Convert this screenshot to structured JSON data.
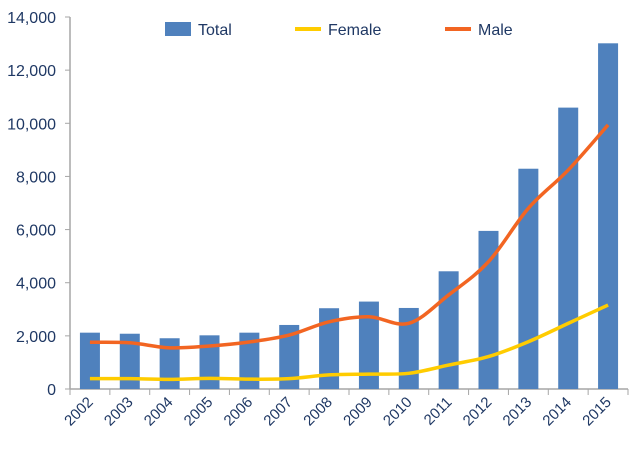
{
  "chart_data": {
    "type": "bar",
    "title": "",
    "xlabel": "",
    "ylabel": "",
    "ylim": [
      0,
      14000
    ],
    "yticks": [
      0,
      2000,
      4000,
      6000,
      8000,
      10000,
      12000,
      14000
    ],
    "ytick_labels": [
      "0",
      "2,000",
      "4,000",
      "6,000",
      "8,000",
      "10,000",
      "12,000",
      "14,000"
    ],
    "categories": [
      "2002",
      "2003",
      "2004",
      "2005",
      "2006",
      "2007",
      "2008",
      "2009",
      "2010",
      "2011",
      "2012",
      "2013",
      "2014",
      "2015"
    ],
    "legend_position": "top",
    "grid": false,
    "series": [
      {
        "name": "Total",
        "kind": "bar",
        "color": "#4f81bd",
        "values": [
          2120,
          2080,
          1910,
          2020,
          2120,
          2410,
          3040,
          3290,
          3050,
          4430,
          5950,
          8290,
          10590,
          13010
        ]
      },
      {
        "name": "Female",
        "kind": "line",
        "color": "#ffcc00",
        "values": [
          390,
          390,
          360,
          400,
          370,
          390,
          530,
          560,
          590,
          900,
          1220,
          1780,
          2470,
          3160
        ]
      },
      {
        "name": "Male",
        "kind": "line",
        "color": "#f26522",
        "values": [
          1760,
          1740,
          1550,
          1620,
          1770,
          2030,
          2530,
          2720,
          2470,
          3540,
          4790,
          6800,
          8240,
          9940
        ]
      }
    ]
  }
}
